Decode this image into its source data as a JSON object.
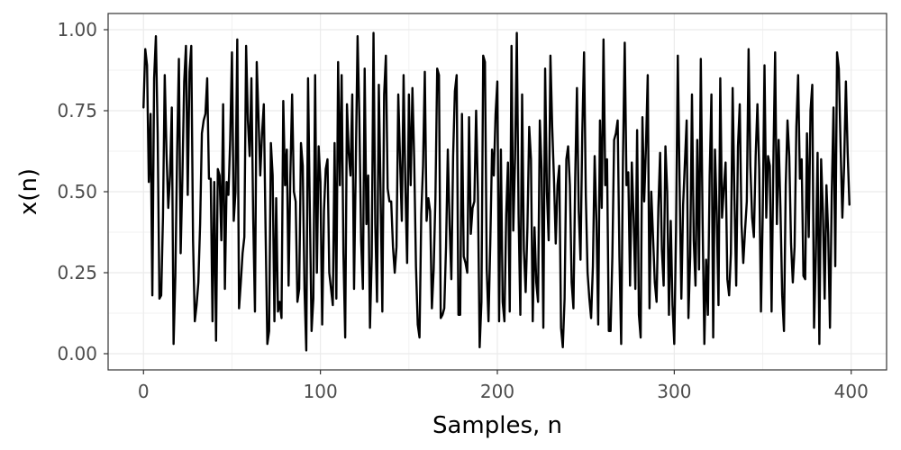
{
  "chart_data": {
    "type": "line",
    "title": "",
    "xlabel": "Samples, n",
    "ylabel": "x(n)",
    "xlim": [
      -20,
      420
    ],
    "ylim": [
      -0.05,
      1.05
    ],
    "x_ticks": [
      0,
      100,
      200,
      300,
      400
    ],
    "x_tick_labels": [
      "0",
      "100",
      "200",
      "300",
      "400"
    ],
    "y_ticks": [
      0.0,
      0.25,
      0.5,
      0.75,
      1.0
    ],
    "y_tick_labels": [
      "0.00",
      "0.25",
      "0.50",
      "0.75",
      "1.00"
    ],
    "grid": true,
    "legend": "none",
    "line_color": "#000000",
    "series": [
      {
        "x_start": 0,
        "x_step": 1,
        "values": [
          0.76,
          0.94,
          0.89,
          0.53,
          0.74,
          0.18,
          0.85,
          0.98,
          0.68,
          0.17,
          0.18,
          0.42,
          0.86,
          0.62,
          0.45,
          0.55,
          0.76,
          0.03,
          0.24,
          0.62,
          0.91,
          0.31,
          0.55,
          0.84,
          0.95,
          0.49,
          0.87,
          0.95,
          0.35,
          0.1,
          0.15,
          0.22,
          0.4,
          0.68,
          0.72,
          0.74,
          0.85,
          0.54,
          0.54,
          0.1,
          0.53,
          0.04,
          0.57,
          0.55,
          0.35,
          0.77,
          0.2,
          0.53,
          0.49,
          0.66,
          0.93,
          0.41,
          0.5,
          0.97,
          0.14,
          0.22,
          0.31,
          0.36,
          0.95,
          0.72,
          0.61,
          0.85,
          0.42,
          0.13,
          0.9,
          0.73,
          0.55,
          0.68,
          0.77,
          0.38,
          0.03,
          0.07,
          0.65,
          0.55,
          0.1,
          0.48,
          0.13,
          0.16,
          0.11,
          0.78,
          0.52,
          0.63,
          0.21,
          0.55,
          0.8,
          0.5,
          0.47,
          0.16,
          0.2,
          0.65,
          0.58,
          0.2,
          0.01,
          0.85,
          0.45,
          0.07,
          0.17,
          0.86,
          0.25,
          0.64,
          0.53,
          0.09,
          0.44,
          0.57,
          0.6,
          0.25,
          0.2,
          0.15,
          0.65,
          0.17,
          0.9,
          0.52,
          0.86,
          0.31,
          0.05,
          0.77,
          0.62,
          0.55,
          0.8,
          0.2,
          0.59,
          0.98,
          0.73,
          0.35,
          0.2,
          0.88,
          0.4,
          0.55,
          0.08,
          0.3,
          0.99,
          0.4,
          0.16,
          0.83,
          0.5,
          0.13,
          0.8,
          0.92,
          0.51,
          0.47,
          0.47,
          0.33,
          0.25,
          0.33,
          0.8,
          0.6,
          0.41,
          0.86,
          0.52,
          0.28,
          0.8,
          0.52,
          0.82,
          0.6,
          0.27,
          0.09,
          0.05,
          0.43,
          0.58,
          0.87,
          0.41,
          0.48,
          0.44,
          0.14,
          0.26,
          0.48,
          0.88,
          0.86,
          0.11,
          0.12,
          0.14,
          0.33,
          0.63,
          0.4,
          0.23,
          0.61,
          0.81,
          0.86,
          0.12,
          0.12,
          0.74,
          0.3,
          0.28,
          0.25,
          0.73,
          0.37,
          0.45,
          0.47,
          0.75,
          0.5,
          0.02,
          0.16,
          0.92,
          0.9,
          0.26,
          0.1,
          0.34,
          0.63,
          0.55,
          0.74,
          0.84,
          0.1,
          0.63,
          0.16,
          0.1,
          0.43,
          0.59,
          0.13,
          0.95,
          0.38,
          0.6,
          0.99,
          0.43,
          0.12,
          0.8,
          0.32,
          0.19,
          0.39,
          0.7,
          0.6,
          0.1,
          0.39,
          0.22,
          0.16,
          0.72,
          0.57,
          0.08,
          0.88,
          0.5,
          0.35,
          0.92,
          0.7,
          0.54,
          0.34,
          0.52,
          0.58,
          0.08,
          0.02,
          0.17,
          0.6,
          0.64,
          0.52,
          0.22,
          0.14,
          0.54,
          0.82,
          0.44,
          0.29,
          0.68,
          0.93,
          0.49,
          0.25,
          0.17,
          0.11,
          0.27,
          0.61,
          0.41,
          0.09,
          0.72,
          0.45,
          0.97,
          0.52,
          0.6,
          0.07,
          0.07,
          0.3,
          0.66,
          0.68,
          0.72,
          0.3,
          0.03,
          0.6,
          0.96,
          0.52,
          0.56,
          0.21,
          0.59,
          0.42,
          0.2,
          0.69,
          0.12,
          0.05,
          0.73,
          0.47,
          0.64,
          0.86,
          0.14,
          0.5,
          0.36,
          0.22,
          0.16,
          0.45,
          0.62,
          0.32,
          0.21,
          0.64,
          0.5,
          0.12,
          0.41,
          0.15,
          0.03,
          0.38,
          0.92,
          0.53,
          0.17,
          0.46,
          0.59,
          0.72,
          0.11,
          0.3,
          0.8,
          0.35,
          0.21,
          0.66,
          0.26,
          0.91,
          0.41,
          0.03,
          0.29,
          0.12,
          0.55,
          0.8,
          0.05,
          0.63,
          0.43,
          0.15,
          0.85,
          0.42,
          0.51,
          0.59,
          0.23,
          0.18,
          0.31,
          0.82,
          0.48,
          0.21,
          0.64,
          0.77,
          0.4,
          0.28,
          0.38,
          0.47,
          0.94,
          0.58,
          0.42,
          0.36,
          0.61,
          0.77,
          0.57,
          0.13,
          0.43,
          0.89,
          0.42,
          0.61,
          0.58,
          0.13,
          0.59,
          0.93,
          0.4,
          0.66,
          0.45,
          0.18,
          0.07,
          0.52,
          0.72,
          0.61,
          0.34,
          0.22,
          0.33,
          0.7,
          0.86,
          0.54,
          0.6,
          0.24,
          0.23,
          0.68,
          0.36,
          0.75,
          0.83,
          0.08,
          0.3,
          0.62,
          0.03,
          0.6,
          0.44,
          0.17,
          0.52,
          0.37,
          0.08,
          0.49,
          0.76,
          0.27,
          0.93,
          0.88,
          0.64,
          0.42,
          0.58,
          0.84,
          0.62,
          0.46
        ]
      }
    ]
  }
}
